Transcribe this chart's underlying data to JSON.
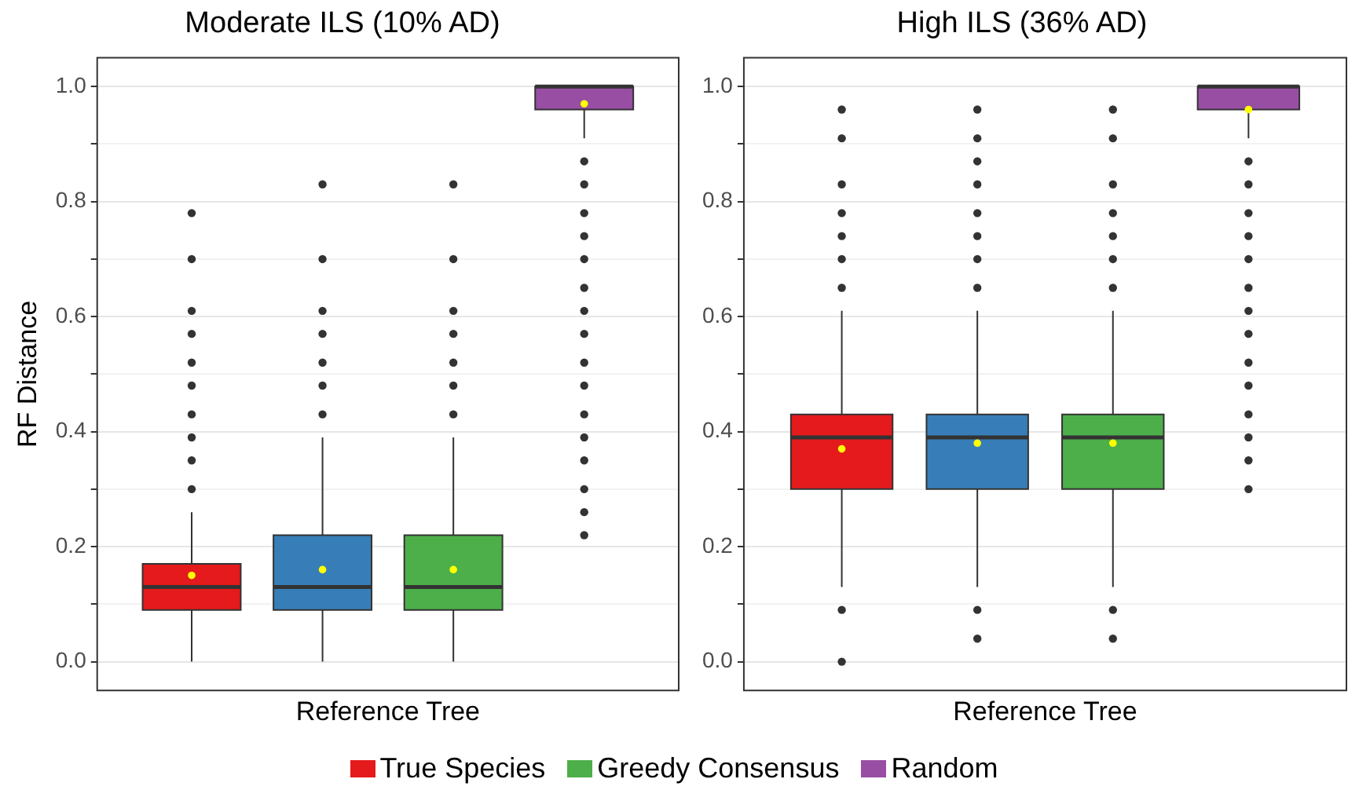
{
  "chart_data": [
    {
      "type": "box",
      "title": "Moderate ILS (10% AD)",
      "xlabel": "Reference Tree",
      "ylabel": "RF Distance",
      "categories": [
        null
      ],
      "ylim": [
        -0.05,
        1.05
      ],
      "yticks": [
        {
          "value": 0,
          "label": "0.0"
        },
        {
          "value": 0.1,
          "label": null
        },
        {
          "value": 0.2,
          "label": "0.2"
        },
        {
          "value": 0.3,
          "label": null
        },
        {
          "value": 0.4,
          "label": "0.4"
        },
        {
          "value": 0.5,
          "label": null
        },
        {
          "value": 0.6,
          "label": "0.6"
        },
        {
          "value": 0.7,
          "label": null
        },
        {
          "value": 0.8,
          "label": "0.8"
        },
        {
          "value": 0.9,
          "label": null
        },
        {
          "value": 1.0,
          "label": "1.0"
        }
      ],
      "grid": "y",
      "tick_labels": "y",
      "legend": "bottom",
      "series": [
        {
          "name": "True Species",
          "color": "#e41a1c",
          "boxes": [
            {
              "low": 0,
              "q1": 0.09,
              "median": 0.13,
              "q3": 0.17,
              "high": 0.26,
              "mean": 0.15,
              "outliers": [
                0.3,
                0.35,
                0.39,
                0.43,
                0.48,
                0.52,
                0.57,
                0.61,
                0.7,
                0.78
              ]
            }
          ]
        },
        {
          "color": "#377eb8",
          "boxes": [
            {
              "low": 0,
              "q1": 0.09,
              "median": 0.13,
              "q3": 0.22,
              "high": 0.39,
              "mean": 0.16,
              "outliers": [
                0.43,
                0.48,
                0.52,
                0.57,
                0.61,
                0.7,
                0.83
              ]
            }
          ]
        },
        {
          "name": "Greedy Consensus",
          "color": "#4daf4a",
          "boxes": [
            {
              "low": 0,
              "q1": 0.09,
              "median": 0.13,
              "q3": 0.22,
              "high": 0.39,
              "mean": 0.16,
              "outliers": [
                0.43,
                0.48,
                0.52,
                0.57,
                0.61,
                0.7,
                0.83
              ]
            }
          ]
        },
        {
          "name": "Random",
          "color": "#984ea3",
          "boxes": [
            {
              "low": 0.91,
              "q1": 0.96,
              "median": 1.0,
              "q3": 1.0,
              "high": 1.0,
              "mean": 0.97,
              "outliers": [
                0.22,
                0.26,
                0.3,
                0.35,
                0.39,
                0.43,
                0.48,
                0.52,
                0.57,
                0.61,
                0.65,
                0.7,
                0.74,
                0.78,
                0.83,
                0.87
              ]
            }
          ]
        }
      ]
    },
    {
      "type": "box",
      "title": "High ILS (36% AD)",
      "xlabel": "Reference Tree",
      "categories": [
        null
      ],
      "ylim": [
        -0.05,
        1.05
      ],
      "yticks": [
        {
          "value": 0,
          "label": "0.0"
        },
        {
          "value": 0.1,
          "label": null
        },
        {
          "value": 0.2,
          "label": "0.2"
        },
        {
          "value": 0.3,
          "label": null
        },
        {
          "value": 0.4,
          "label": "0.4"
        },
        {
          "value": 0.5,
          "label": null
        },
        {
          "value": 0.6,
          "label": "0.6"
        },
        {
          "value": 0.7,
          "label": null
        },
        {
          "value": 0.8,
          "label": "0.8"
        },
        {
          "value": 0.9,
          "label": null
        },
        {
          "value": 1.0,
          "label": "1.0"
        }
      ],
      "grid": "y",
      "tick_labels": "y",
      "series": [
        {
          "color": "#e41a1c",
          "boxes": [
            {
              "low": 0.13,
              "q1": 0.3,
              "median": 0.39,
              "q3": 0.43,
              "high": 0.61,
              "mean": 0.37,
              "outliers": [
                0,
                0.09,
                0.65,
                0.7,
                0.74,
                0.78,
                0.83,
                0.91,
                0.96
              ]
            }
          ]
        },
        {
          "color": "#377eb8",
          "boxes": [
            {
              "low": 0.13,
              "q1": 0.3,
              "median": 0.39,
              "q3": 0.43,
              "high": 0.61,
              "mean": 0.38,
              "outliers": [
                0.04,
                0.09,
                0.65,
                0.7,
                0.74,
                0.78,
                0.83,
                0.87,
                0.91,
                0.96
              ]
            }
          ]
        },
        {
          "color": "#4daf4a",
          "boxes": [
            {
              "low": 0.13,
              "q1": 0.3,
              "median": 0.39,
              "q3": 0.43,
              "high": 0.61,
              "mean": 0.38,
              "outliers": [
                0.04,
                0.09,
                0.65,
                0.7,
                0.74,
                0.78,
                0.83,
                0.91,
                0.96
              ]
            }
          ]
        },
        {
          "color": "#984ea3",
          "boxes": [
            {
              "low": 0.91,
              "q1": 0.96,
              "median": 1.0,
              "q3": 1.0,
              "high": 1.0,
              "mean": 0.96,
              "outliers": [
                0.3,
                0.35,
                0.39,
                0.43,
                0.48,
                0.52,
                0.57,
                0.61,
                0.65,
                0.7,
                0.74,
                0.78,
                0.83,
                0.87
              ]
            }
          ]
        }
      ]
    }
  ]
}
